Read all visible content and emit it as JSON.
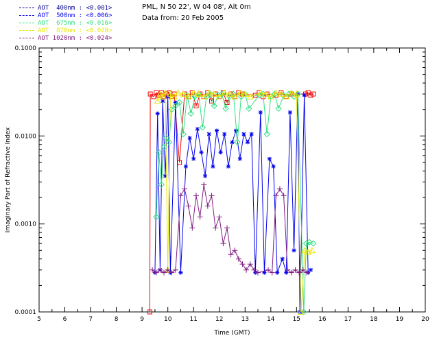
{
  "header": {
    "site_line": "PML, N 50 22', W 04 08', Alt 0m",
    "date_line": "Data from: 20 Feb 2005"
  },
  "chart_data": {
    "type": "line",
    "title": "",
    "xlabel": "Time (GMT)",
    "ylabel": "Imaginary Part of Refractive Index",
    "xlim": [
      5,
      20
    ],
    "ylim": [
      0.0001,
      0.1
    ],
    "yscale": "log",
    "grid": false,
    "legend_position": "top-left",
    "xticks": [
      5,
      6,
      7,
      8,
      9,
      10,
      11,
      12,
      13,
      14,
      15,
      16,
      17,
      18,
      19,
      20
    ],
    "yticks": [
      0.0001,
      0.001,
      0.01,
      0.1
    ],
    "ytick_labels": [
      "0.0001",
      "0.0010",
      "0.0100",
      "0.1000"
    ],
    "axis_color": "#000000",
    "series": [
      {
        "name": "AOT 400nm",
        "wavelength": "400nm",
        "mean": "<0.001>",
        "legend_label": "AOT  400nm : <0.001>",
        "legend_color": "#00008b",
        "color": "#ee0000",
        "marker": "square",
        "points": [
          [
            9.3,
            0.0001
          ],
          [
            9.32,
            0.03
          ],
          [
            9.45,
            0.028
          ],
          [
            9.55,
            0.031
          ],
          [
            9.65,
            0.029
          ],
          [
            9.75,
            0.031
          ],
          [
            9.85,
            0.028
          ],
          [
            9.95,
            0.03
          ],
          [
            10.05,
            0.031
          ],
          [
            10.15,
            0.028
          ],
          [
            10.25,
            0.03
          ],
          [
            10.45,
            0.005
          ],
          [
            10.65,
            0.03
          ],
          [
            10.8,
            0.028
          ],
          [
            10.95,
            0.031
          ],
          [
            11.1,
            0.022
          ],
          [
            11.25,
            0.03
          ],
          [
            11.4,
            0.028
          ],
          [
            11.55,
            0.031
          ],
          [
            11.7,
            0.025
          ],
          [
            11.85,
            0.03
          ],
          [
            12.0,
            0.028
          ],
          [
            12.15,
            0.031
          ],
          [
            12.3,
            0.024
          ],
          [
            12.45,
            0.03
          ],
          [
            12.6,
            0.028
          ],
          [
            12.75,
            0.031
          ],
          [
            12.9,
            0.03
          ],
          [
            13.4,
            0.029
          ],
          [
            13.55,
            0.031
          ],
          [
            13.7,
            0.028
          ],
          [
            13.85,
            0.03
          ],
          [
            14.2,
            0.029
          ],
          [
            14.4,
            0.031
          ],
          [
            14.6,
            0.028
          ],
          [
            14.8,
            0.03
          ],
          [
            15.35,
            0.03
          ],
          [
            15.45,
            0.031
          ],
          [
            15.55,
            0.029
          ],
          [
            15.65,
            0.03
          ]
        ]
      },
      {
        "name": "AOT 500nm",
        "wavelength": "500nm",
        "mean": "<0.006>",
        "legend_label": "AOT  500nm : <0.006>",
        "legend_color": "#0000ee",
        "color": "#0000ee",
        "marker": "asterisk",
        "points": [
          [
            9.5,
            0.00028
          ],
          [
            9.6,
            0.018
          ],
          [
            9.7,
            0.0003
          ],
          [
            9.8,
            0.025
          ],
          [
            9.9,
            0.0035
          ],
          [
            10.0,
            0.028
          ],
          [
            10.1,
            0.00028
          ],
          [
            10.3,
            0.024
          ],
          [
            10.5,
            0.00028
          ],
          [
            10.7,
            0.0045
          ],
          [
            10.85,
            0.0095
          ],
          [
            11.0,
            0.0055
          ],
          [
            11.15,
            0.012
          ],
          [
            11.3,
            0.0065
          ],
          [
            11.45,
            0.0035
          ],
          [
            11.6,
            0.0105
          ],
          [
            11.75,
            0.0045
          ],
          [
            11.9,
            0.0115
          ],
          [
            12.05,
            0.0065
          ],
          [
            12.2,
            0.0105
          ],
          [
            12.35,
            0.0045
          ],
          [
            12.5,
            0.0085
          ],
          [
            12.65,
            0.0115
          ],
          [
            12.8,
            0.0055
          ],
          [
            12.95,
            0.0105
          ],
          [
            13.1,
            0.0085
          ],
          [
            13.25,
            0.0105
          ],
          [
            13.4,
            0.00028
          ],
          [
            13.6,
            0.0185
          ],
          [
            13.75,
            0.00028
          ],
          [
            13.95,
            0.0055
          ],
          [
            14.1,
            0.0045
          ],
          [
            14.25,
            0.00028
          ],
          [
            14.45,
            0.0004
          ],
          [
            14.6,
            0.00028
          ],
          [
            14.75,
            0.0185
          ],
          [
            14.9,
            0.0005
          ],
          [
            15.05,
            0.03
          ],
          [
            15.13,
            0.0001
          ],
          [
            15.3,
            0.029
          ],
          [
            15.45,
            0.00028
          ],
          [
            15.55,
            0.0003
          ]
        ]
      },
      {
        "name": "AOT 675nm",
        "wavelength": "675nm",
        "mean": "<0.016>",
        "legend_label": "AOT  675nm : <0.016>",
        "legend_color": "#2fe080",
        "color": "#2fe080",
        "marker": "diamond",
        "points": [
          [
            9.55,
            0.0012
          ],
          [
            9.65,
            0.0065
          ],
          [
            9.75,
            0.0028
          ],
          [
            9.85,
            0.0075
          ],
          [
            9.95,
            0.0095
          ],
          [
            10.05,
            0.0085
          ],
          [
            10.15,
            0.02
          ],
          [
            10.3,
            0.022
          ],
          [
            10.45,
            0.024
          ],
          [
            10.6,
            0.0105
          ],
          [
            10.75,
            0.029
          ],
          [
            10.9,
            0.018
          ],
          [
            11.05,
            0.028
          ],
          [
            11.2,
            0.03
          ],
          [
            11.35,
            0.0125
          ],
          [
            11.5,
            0.028
          ],
          [
            11.65,
            0.03
          ],
          [
            11.8,
            0.022
          ],
          [
            11.95,
            0.029
          ],
          [
            12.1,
            0.03
          ],
          [
            12.25,
            0.0205
          ],
          [
            12.4,
            0.028
          ],
          [
            12.55,
            0.03
          ],
          [
            12.7,
            0.0085
          ],
          [
            12.85,
            0.028
          ],
          [
            13.0,
            0.03
          ],
          [
            13.15,
            0.0205
          ],
          [
            13.55,
            0.029
          ],
          [
            13.7,
            0.03
          ],
          [
            13.85,
            0.0105
          ],
          [
            14.0,
            0.028
          ],
          [
            14.15,
            0.03
          ],
          [
            14.3,
            0.0205
          ],
          [
            14.5,
            0.029
          ],
          [
            14.7,
            0.03
          ],
          [
            14.9,
            0.028
          ],
          [
            15.05,
            0.03
          ],
          [
            15.28,
            0.0001
          ],
          [
            15.38,
            0.0006
          ],
          [
            15.5,
            0.00062
          ],
          [
            15.65,
            0.0006
          ]
        ]
      },
      {
        "name": "AOT 870nm",
        "wavelength": "870nm",
        "mean": "<0.020>",
        "legend_label": "AOT  870nm : <0.020>",
        "legend_color": "#e6e600",
        "color": "#e6e600",
        "marker": "triangle",
        "points": [
          [
            9.6,
            0.025
          ],
          [
            9.7,
            0.03
          ],
          [
            9.8,
            0.028
          ],
          [
            9.9,
            0.031
          ],
          [
            10.0,
            0.0003
          ],
          [
            10.1,
            0.03
          ],
          [
            10.25,
            0.028
          ],
          [
            10.4,
            0.031
          ],
          [
            10.6,
            0.03
          ],
          [
            10.8,
            0.028
          ],
          [
            11.0,
            0.031
          ],
          [
            11.2,
            0.03
          ],
          [
            11.4,
            0.028
          ],
          [
            11.6,
            0.031
          ],
          [
            11.8,
            0.03
          ],
          [
            12.0,
            0.028
          ],
          [
            12.2,
            0.031
          ],
          [
            12.4,
            0.03
          ],
          [
            12.6,
            0.028
          ],
          [
            12.8,
            0.031
          ],
          [
            13.0,
            0.03
          ],
          [
            13.2,
            0.028
          ],
          [
            13.6,
            0.031
          ],
          [
            13.8,
            0.03
          ],
          [
            14.0,
            0.028
          ],
          [
            14.2,
            0.031
          ],
          [
            14.4,
            0.03
          ],
          [
            14.6,
            0.028
          ],
          [
            14.8,
            0.031
          ],
          [
            15.0,
            0.03
          ],
          [
            15.18,
            0.0001
          ],
          [
            15.32,
            0.0005
          ],
          [
            15.45,
            0.00048
          ],
          [
            15.6,
            0.0005
          ]
        ]
      },
      {
        "name": "AOT 1020nm",
        "wavelength": "1020nm",
        "mean": "<0.024>",
        "legend_label": "AOT 1020nm : <0.024>",
        "legend_color": "#801a80",
        "color": "#801a80",
        "marker": "plus",
        "points": [
          [
            9.4,
            0.0003
          ],
          [
            9.55,
            0.00028
          ],
          [
            9.7,
            0.0003
          ],
          [
            9.85,
            0.00028
          ],
          [
            10.0,
            0.0003
          ],
          [
            10.15,
            0.00028
          ],
          [
            10.3,
            0.0003
          ],
          [
            10.5,
            0.0021
          ],
          [
            10.65,
            0.0025
          ],
          [
            10.8,
            0.0016
          ],
          [
            10.95,
            0.0009
          ],
          [
            11.1,
            0.0021
          ],
          [
            11.25,
            0.0012
          ],
          [
            11.4,
            0.0028
          ],
          [
            11.55,
            0.0016
          ],
          [
            11.7,
            0.0021
          ],
          [
            11.85,
            0.0009
          ],
          [
            12.0,
            0.0012
          ],
          [
            12.15,
            0.0006
          ],
          [
            12.3,
            0.0009
          ],
          [
            12.45,
            0.00045
          ],
          [
            12.6,
            0.0005
          ],
          [
            12.75,
            0.0004
          ],
          [
            12.9,
            0.00035
          ],
          [
            13.05,
            0.0003
          ],
          [
            13.2,
            0.00035
          ],
          [
            13.35,
            0.0003
          ],
          [
            13.5,
            0.00028
          ],
          [
            13.9,
            0.0003
          ],
          [
            14.05,
            0.00028
          ],
          [
            14.2,
            0.0021
          ],
          [
            14.35,
            0.0025
          ],
          [
            14.5,
            0.0021
          ],
          [
            14.65,
            0.0003
          ],
          [
            14.8,
            0.00028
          ],
          [
            14.95,
            0.0003
          ],
          [
            15.1,
            0.00028
          ],
          [
            15.25,
            0.0003
          ],
          [
            15.4,
            0.00028
          ]
        ]
      }
    ]
  }
}
